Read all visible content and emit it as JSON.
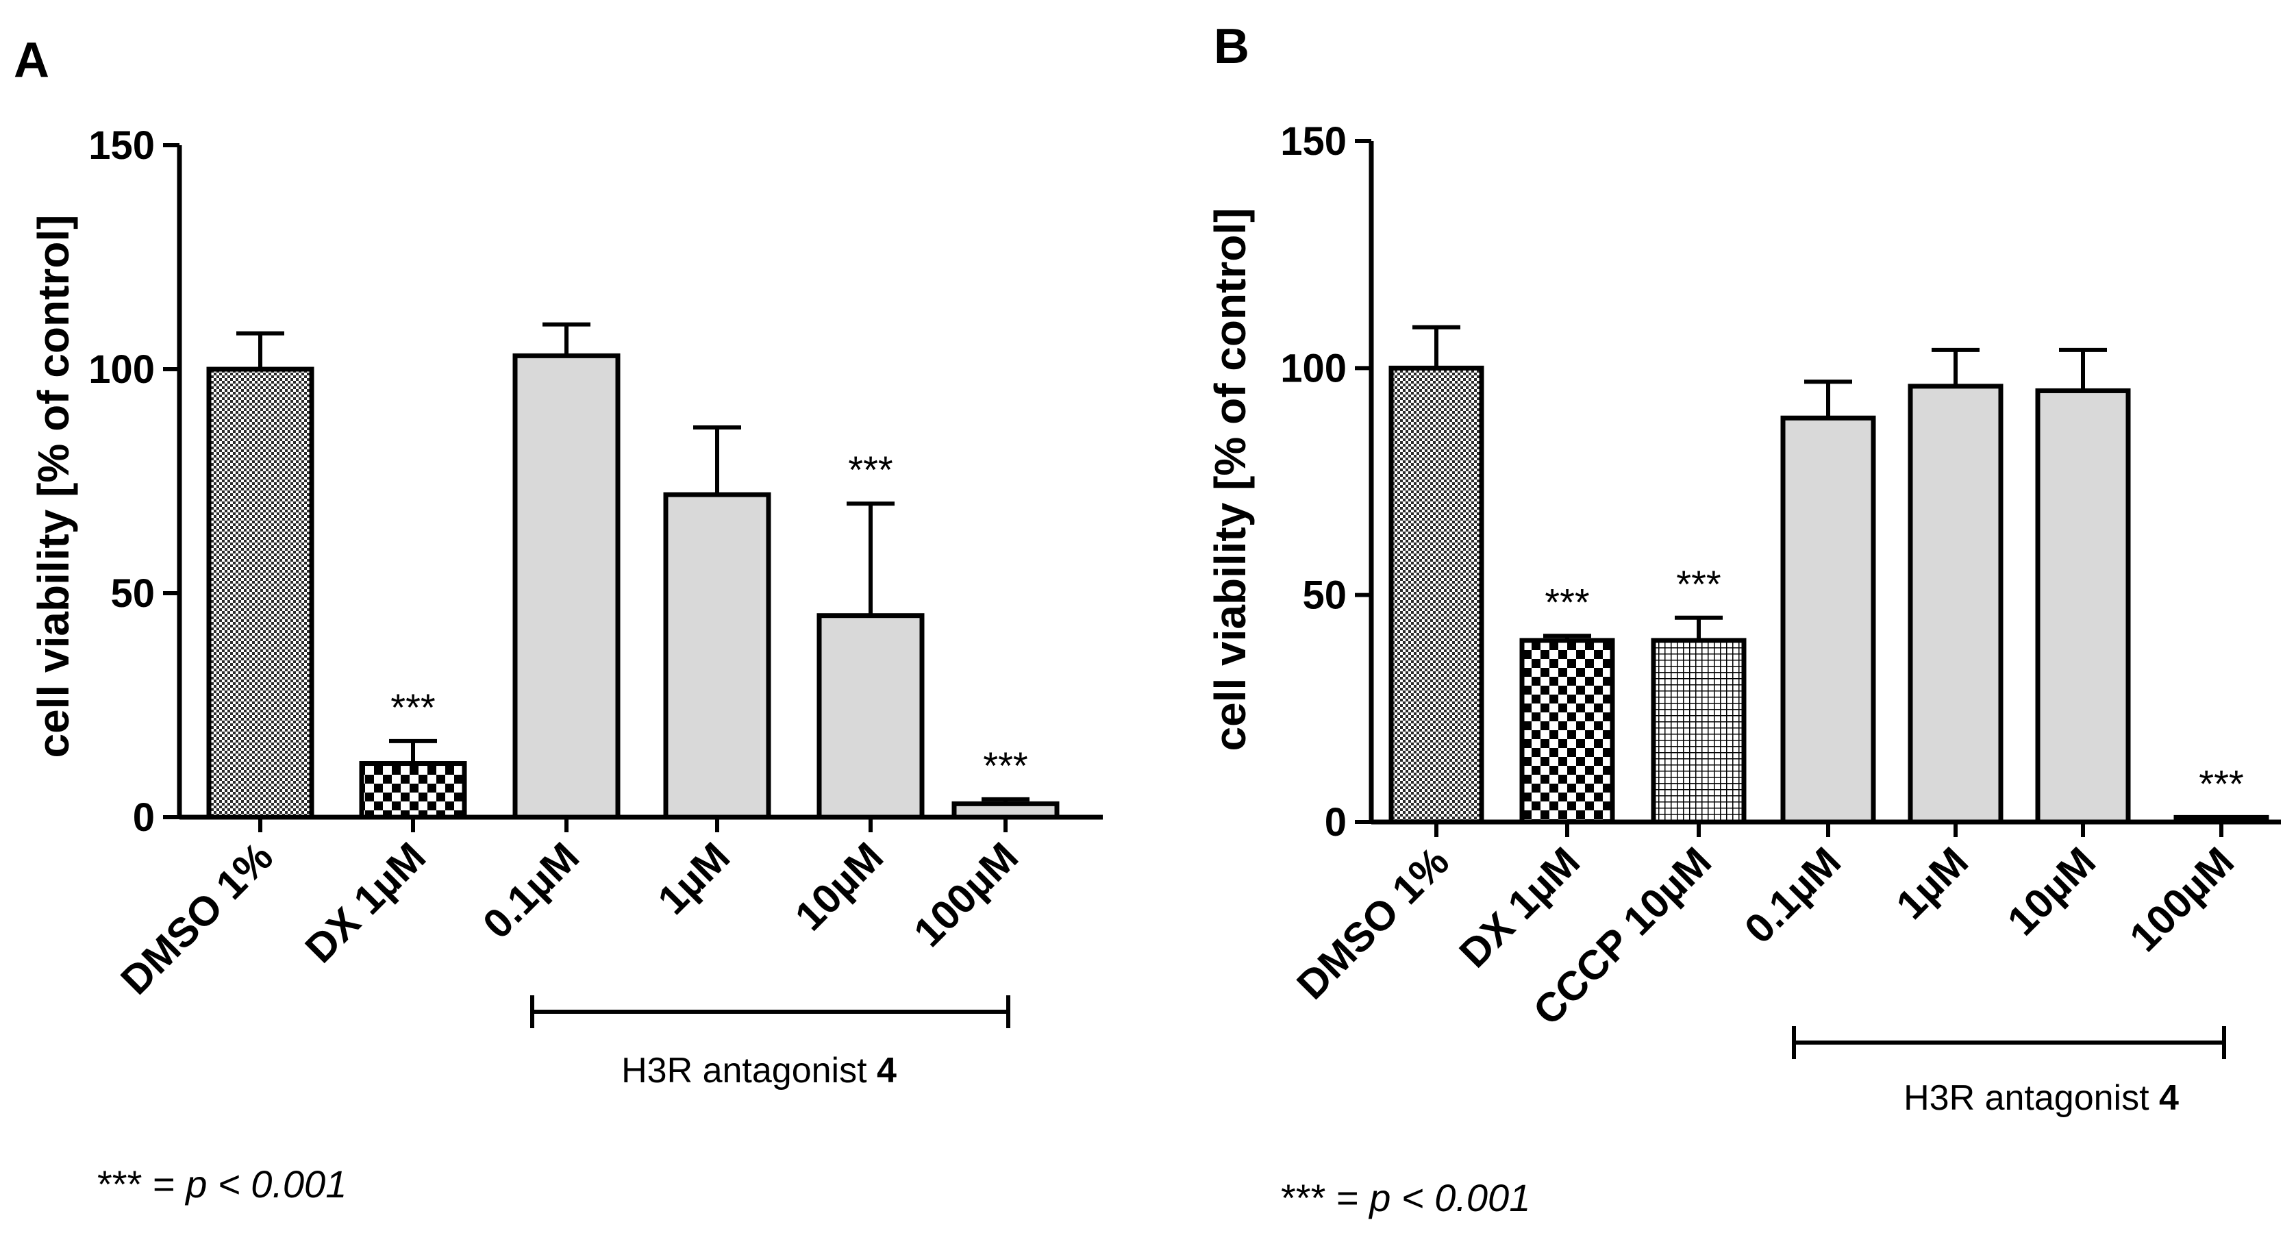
{
  "colors": {
    "bar_fill": "#d9d9d9",
    "stroke": "#000000",
    "background": "#ffffff"
  },
  "chart_data": [
    {
      "panel": "A",
      "type": "bar",
      "ylabel": "cell viability [%  of control]",
      "xlabel": "",
      "ylim": [
        0,
        150
      ],
      "yticks": [
        0,
        50,
        100,
        150
      ],
      "ytick_labels": [
        "0",
        "50",
        "100",
        "150"
      ],
      "categories": [
        "DMSO 1%",
        "DX 1µM",
        "0.1µM",
        "1µM",
        "10µM",
        "100µM"
      ],
      "values": [
        100,
        12,
        103,
        72,
        45,
        3
      ],
      "errors": [
        8,
        5,
        7,
        15,
        25,
        1
      ],
      "fill_patterns": [
        "dense-pattern",
        "checker-pattern",
        "solid",
        "solid",
        "solid",
        "solid"
      ],
      "significance": [
        "",
        "***",
        "",
        "",
        "***",
        "***"
      ],
      "group": {
        "label": "H3R antagonist ",
        "label_bold": "4",
        "from": "0.1µM",
        "to": "100µM"
      },
      "footnote": {
        "stars": "***",
        "equals": " = ",
        "p": "p",
        "rest": " < 0.001"
      }
    },
    {
      "panel": "B",
      "type": "bar",
      "ylabel": "cell viability [%  of control]",
      "xlabel": "",
      "ylim": [
        0,
        150
      ],
      "yticks": [
        0,
        50,
        100,
        150
      ],
      "ytick_labels": [
        "0",
        "50",
        "100",
        "150"
      ],
      "categories": [
        "DMSO 1%",
        "DX 1µM",
        "CCCP 10µM",
        "0.1µM",
        "1µM",
        "10µM",
        "100µM"
      ],
      "values": [
        100,
        40,
        40,
        89,
        96,
        95,
        1
      ],
      "errors": [
        9,
        1,
        5,
        8,
        8,
        9,
        0
      ],
      "fill_patterns": [
        "dense-pattern",
        "checker-pattern",
        "grid-pattern",
        "solid",
        "solid",
        "solid",
        "solid"
      ],
      "significance": [
        "",
        "***",
        "***",
        "",
        "",
        "",
        "***"
      ],
      "group": {
        "label": "H3R antagonist ",
        "label_bold": "4",
        "from": "0.1µM",
        "to": "100µM"
      },
      "footnote": {
        "stars": "***",
        "equals": " = ",
        "p": "p",
        "rest": " < 0.001"
      }
    }
  ]
}
